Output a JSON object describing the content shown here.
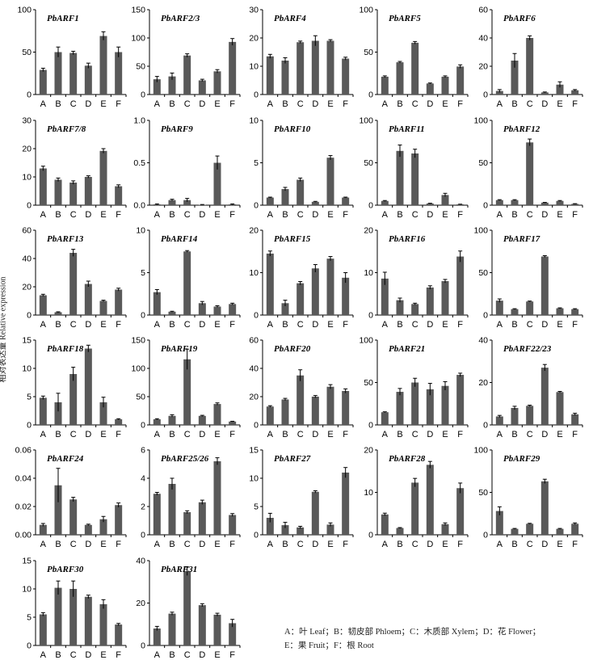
{
  "y_axis_title": "相对表达量 Relative expression",
  "legend": {
    "line1": "A：叶 Leaf；B：韧皮部 Phloem；C：木质部 Xylem；D：花 Flower；",
    "line2": "E：果 Fruit；F：根 Root"
  },
  "chart_data": [
    {
      "type": "bar",
      "title": "PbARF1",
      "categories": [
        "A",
        "B",
        "C",
        "D",
        "E",
        "F"
      ],
      "yticks": [
        0,
        50,
        100
      ],
      "ylim": [
        0,
        100
      ],
      "values": [
        29,
        50,
        49,
        34,
        69,
        50
      ],
      "errors": [
        2,
        6,
        2,
        3,
        5,
        6
      ]
    },
    {
      "type": "bar",
      "title": "PbARF2/3",
      "categories": [
        "A",
        "B",
        "C",
        "D",
        "E",
        "F"
      ],
      "yticks": [
        0,
        50,
        100,
        150
      ],
      "ylim": [
        0,
        150
      ],
      "values": [
        27,
        32,
        69,
        25,
        41,
        93
      ],
      "errors": [
        5,
        6,
        3,
        2,
        3,
        6
      ]
    },
    {
      "type": "bar",
      "title": "PbARF4",
      "categories": [
        "A",
        "B",
        "C",
        "D",
        "E",
        "F"
      ],
      "yticks": [
        0,
        10,
        20,
        30
      ],
      "ylim": [
        0,
        30
      ],
      "values": [
        13.5,
        12,
        18.5,
        19,
        19,
        12.7
      ],
      "errors": [
        0.7,
        1,
        0.4,
        1.8,
        0.4,
        0.5
      ]
    },
    {
      "type": "bar",
      "title": "PbARF5",
      "categories": [
        "A",
        "B",
        "C",
        "D",
        "E",
        "F"
      ],
      "yticks": [
        0,
        50,
        100
      ],
      "ylim": [
        0,
        100
      ],
      "values": [
        21,
        38,
        61,
        13,
        21,
        33
      ],
      "errors": [
        1,
        1,
        1.5,
        0.6,
        1,
        2
      ]
    },
    {
      "type": "bar",
      "title": "PbARF6",
      "categories": [
        "A",
        "B",
        "C",
        "D",
        "E",
        "F"
      ],
      "yticks": [
        0,
        20,
        40,
        60
      ],
      "ylim": [
        0,
        60
      ],
      "values": [
        2.5,
        24,
        40,
        1.5,
        7,
        3
      ],
      "errors": [
        1,
        5,
        1.5,
        0.3,
        2,
        0.5
      ]
    },
    {
      "type": "bar",
      "title": "PbARF7/8",
      "categories": [
        "A",
        "B",
        "C",
        "D",
        "E",
        "F"
      ],
      "yticks": [
        0,
        10,
        20,
        30
      ],
      "ylim": [
        0,
        30
      ],
      "values": [
        13,
        9,
        8,
        10,
        19.2,
        6.7
      ],
      "errors": [
        0.8,
        0.6,
        0.6,
        0.4,
        0.8,
        0.5
      ]
    },
    {
      "type": "bar",
      "title": "PbARF9",
      "categories": [
        "A",
        "B",
        "C",
        "D",
        "E",
        "F"
      ],
      "yticks": [
        "0.0",
        "0.5",
        "1.0"
      ],
      "ylim": [
        0,
        1
      ],
      "values": [
        0.01,
        0.06,
        0.06,
        0.005,
        0.5,
        0.01
      ],
      "errors": [
        0.005,
        0.01,
        0.02,
        0.003,
        0.08,
        0.005
      ]
    },
    {
      "type": "bar",
      "title": "PbARF10",
      "categories": [
        "A",
        "B",
        "C",
        "D",
        "E",
        "F"
      ],
      "yticks": [
        0,
        5,
        10
      ],
      "ylim": [
        0,
        10
      ],
      "values": [
        0.9,
        1.9,
        3.0,
        0.4,
        5.6,
        0.9
      ],
      "errors": [
        0.05,
        0.2,
        0.2,
        0.05,
        0.25,
        0.05
      ]
    },
    {
      "type": "bar",
      "title": "PbARF11",
      "categories": [
        "A",
        "B",
        "C",
        "D",
        "E",
        "F"
      ],
      "yticks": [
        0,
        50,
        100
      ],
      "ylim": [
        0,
        100
      ],
      "values": [
        5,
        64,
        61,
        2,
        12,
        1
      ],
      "errors": [
        0.5,
        7,
        5,
        0.3,
        2,
        0.2
      ]
    },
    {
      "type": "bar",
      "title": "PbARF12",
      "categories": [
        "A",
        "B",
        "C",
        "D",
        "E",
        "F"
      ],
      "yticks": [
        0,
        50,
        100
      ],
      "ylim": [
        0,
        100
      ],
      "values": [
        6,
        6,
        74,
        3,
        5,
        1.5
      ],
      "errors": [
        0.5,
        0.5,
        4,
        0.3,
        0.5,
        0.3
      ]
    },
    {
      "type": "bar",
      "title": "PbARF13",
      "categories": [
        "A",
        "B",
        "C",
        "D",
        "E",
        "F"
      ],
      "yticks": [
        0,
        20,
        40,
        60
      ],
      "ylim": [
        0,
        60
      ],
      "values": [
        14,
        2,
        44,
        22,
        10,
        18
      ],
      "errors": [
        0.7,
        0.3,
        2.5,
        2,
        0.5,
        1
      ]
    },
    {
      "type": "bar",
      "title": "PbARF14",
      "categories": [
        "A",
        "B",
        "C",
        "D",
        "E",
        "F"
      ],
      "yticks": [
        0,
        5,
        10
      ],
      "ylim": [
        0,
        10
      ],
      "values": [
        2.7,
        0.4,
        7.5,
        1.4,
        1.0,
        1.3
      ],
      "errors": [
        0.3,
        0.05,
        0.1,
        0.2,
        0.1,
        0.1
      ]
    },
    {
      "type": "bar",
      "title": "PbARF15",
      "categories": [
        "A",
        "B",
        "C",
        "D",
        "E",
        "F"
      ],
      "yticks": [
        0,
        10,
        20
      ],
      "ylim": [
        0,
        20
      ],
      "values": [
        14.5,
        2.8,
        7.5,
        11,
        13.3,
        8.8
      ],
      "errors": [
        0.6,
        0.7,
        0.4,
        0.9,
        0.5,
        1.2
      ]
    },
    {
      "type": "bar",
      "title": "PbARF16",
      "categories": [
        "A",
        "B",
        "C",
        "D",
        "E",
        "F"
      ],
      "yticks": [
        0,
        10,
        20
      ],
      "ylim": [
        0,
        20
      ],
      "values": [
        8.6,
        3.5,
        2.6,
        6.5,
        8,
        13.8
      ],
      "errors": [
        1.5,
        0.5,
        0.2,
        0.4,
        0.4,
        1.3
      ]
    },
    {
      "type": "bar",
      "title": "PbARF17",
      "categories": [
        "A",
        "B",
        "C",
        "D",
        "E",
        "F"
      ],
      "yticks": [
        0,
        50,
        100
      ],
      "ylim": [
        0,
        100
      ],
      "values": [
        17,
        7,
        16,
        69,
        8,
        7
      ],
      "errors": [
        2,
        0.5,
        0.5,
        1,
        0.5,
        0.5
      ]
    },
    {
      "type": "bar",
      "title": "PbARF18",
      "categories": [
        "A",
        "B",
        "C",
        "D",
        "E",
        "F"
      ],
      "yticks": [
        0,
        5,
        10,
        15
      ],
      "ylim": [
        0,
        15
      ],
      "values": [
        4.8,
        4,
        9,
        13.5,
        4,
        1
      ],
      "errors": [
        0.3,
        1.6,
        1.2,
        0.6,
        0.9,
        0.1
      ]
    },
    {
      "type": "bar",
      "title": "PbARF19",
      "categories": [
        "A",
        "B",
        "C",
        "D",
        "E",
        "F"
      ],
      "yticks": [
        0,
        50,
        100,
        150
      ],
      "ylim": [
        0,
        150
      ],
      "values": [
        10,
        16,
        116,
        16,
        37,
        6
      ],
      "errors": [
        1,
        2,
        18,
        1,
        2,
        0.5
      ]
    },
    {
      "type": "bar",
      "title": "PbARF20",
      "categories": [
        "A",
        "B",
        "C",
        "D",
        "E",
        "F"
      ],
      "yticks": [
        0,
        20,
        40,
        60
      ],
      "ylim": [
        0,
        60
      ],
      "values": [
        13,
        18,
        35,
        20,
        27,
        24
      ],
      "errors": [
        0.6,
        0.8,
        4,
        0.8,
        1.5,
        1.5
      ]
    },
    {
      "type": "bar",
      "title": "PbARF21",
      "categories": [
        "A",
        "B",
        "C",
        "D",
        "E",
        "F"
      ],
      "yticks": [
        0,
        50,
        100
      ],
      "ylim": [
        0,
        100
      ],
      "values": [
        15,
        39,
        50,
        42,
        46,
        59
      ],
      "errors": [
        0.5,
        4,
        5,
        7,
        5,
        2
      ]
    },
    {
      "type": "bar",
      "title": "PbARF22/23",
      "categories": [
        "A",
        "B",
        "C",
        "D",
        "E",
        "F"
      ],
      "yticks": [
        0,
        20,
        40
      ],
      "ylim": [
        0,
        40
      ],
      "values": [
        4,
        8,
        9,
        27,
        15.5,
        5
      ],
      "errors": [
        0.5,
        0.8,
        0.3,
        1.5,
        0.3,
        0.5
      ]
    },
    {
      "type": "bar",
      "title": "PbARF24",
      "categories": [
        "A",
        "B",
        "C",
        "D",
        "E",
        "F"
      ],
      "yticks": [
        "0.00",
        "0.02",
        "0.04",
        "0.06"
      ],
      "ylim": [
        0,
        0.06
      ],
      "values": [
        0.007,
        0.035,
        0.025,
        0.007,
        0.011,
        0.021
      ],
      "errors": [
        0.001,
        0.012,
        0.0015,
        0.0005,
        0.002,
        0.0015
      ]
    },
    {
      "type": "bar",
      "title": "PbARF25/26",
      "categories": [
        "A",
        "B",
        "C",
        "D",
        "E",
        "F"
      ],
      "yticks": [
        0,
        2,
        4,
        6
      ],
      "ylim": [
        0,
        6
      ],
      "values": [
        2.9,
        3.6,
        1.6,
        2.3,
        5.2,
        1.4
      ],
      "errors": [
        0.1,
        0.4,
        0.1,
        0.15,
        0.25,
        0.1
      ]
    },
    {
      "type": "bar",
      "title": "PbARF27",
      "categories": [
        "A",
        "B",
        "C",
        "D",
        "E",
        "F"
      ],
      "yticks": [
        0,
        5,
        10,
        15
      ],
      "ylim": [
        0,
        15
      ],
      "values": [
        3,
        1.7,
        1.3,
        7.6,
        1.8,
        11
      ],
      "errors": [
        0.8,
        0.5,
        0.2,
        0.2,
        0.3,
        0.9
      ]
    },
    {
      "type": "bar",
      "title": "PbARF28",
      "categories": [
        "A",
        "B",
        "C",
        "D",
        "E",
        "F"
      ],
      "yticks": [
        0,
        10,
        20
      ],
      "ylim": [
        0,
        20
      ],
      "values": [
        4.8,
        1.6,
        12.3,
        16.5,
        2.5,
        11
      ],
      "errors": [
        0.3,
        0.1,
        1,
        0.8,
        0.3,
        1.2
      ]
    },
    {
      "type": "bar",
      "title": "PbARF29",
      "categories": [
        "A",
        "B",
        "C",
        "D",
        "E",
        "F"
      ],
      "yticks": [
        0,
        50,
        100
      ],
      "ylim": [
        0,
        100
      ],
      "values": [
        28,
        7,
        13,
        63,
        7,
        13
      ],
      "errors": [
        5,
        0.5,
        0.5,
        2.5,
        0.5,
        1
      ]
    },
    {
      "type": "bar",
      "title": "PbARF30",
      "categories": [
        "A",
        "B",
        "C",
        "D",
        "E",
        "F"
      ],
      "yticks": [
        0,
        5,
        10,
        15
      ],
      "ylim": [
        0,
        15
      ],
      "values": [
        5.5,
        10.2,
        10,
        8.6,
        7.3,
        3.7
      ],
      "errors": [
        0.3,
        1.2,
        1.4,
        0.3,
        0.8,
        0.2
      ]
    },
    {
      "type": "bar",
      "title": "PbARF31",
      "categories": [
        "A",
        "B",
        "C",
        "D",
        "E",
        "F"
      ],
      "yticks": [
        0,
        20,
        40
      ],
      "ylim": [
        0,
        40
      ],
      "values": [
        8,
        15,
        35,
        19,
        14.5,
        10.5
      ],
      "errors": [
        1,
        0.7,
        2,
        0.7,
        0.7,
        1.8
      ]
    }
  ]
}
